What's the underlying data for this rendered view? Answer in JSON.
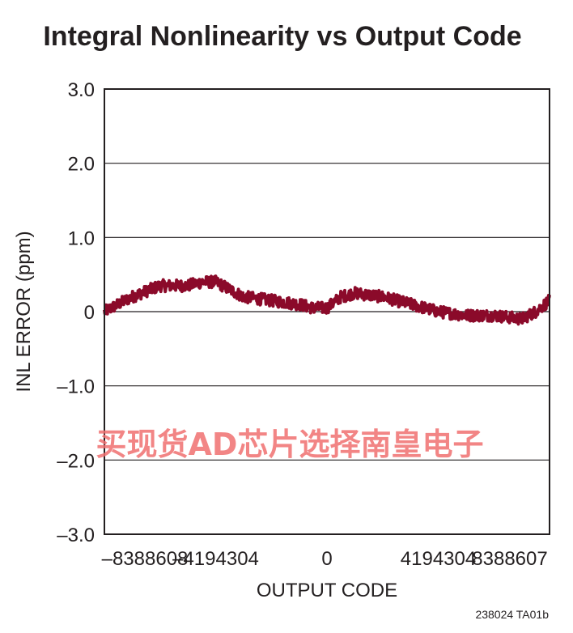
{
  "chart_data": {
    "type": "line",
    "title": "Integral Nonlinearity vs Output Code",
    "xlabel": "OUTPUT CODE",
    "ylabel": "INL ERROR (ppm)",
    "xlim": [
      -8388608,
      8388607
    ],
    "ylim": [
      -3.0,
      3.0
    ],
    "x_ticks": [
      -8388608,
      -4194304,
      0,
      4194304,
      8388607
    ],
    "x_tick_labels": [
      "–8388608",
      "–4194304",
      "0",
      "4194304",
      "8388607"
    ],
    "y_ticks": [
      3.0,
      2.0,
      1.0,
      0,
      -1.0,
      -2.0,
      -3.0
    ],
    "y_tick_labels": [
      "3.0",
      "2.0",
      "1.0",
      "0",
      "–1.0",
      "–2.0",
      "–3.0"
    ],
    "grid": "horizontal",
    "legend": "none",
    "series": [
      {
        "color": "#8b0a2a",
        "x": [
          -8388608,
          -7864320,
          -7340032,
          -6291456,
          -5242880,
          -4718592,
          -4194304,
          -3670016,
          -3145728,
          -2097152,
          -1048576,
          -524288,
          0,
          524288,
          1048576,
          2097152,
          3145728,
          4194304,
          5242880,
          6291456,
          7340032,
          7864320,
          8388607
        ],
        "y": [
          0.0,
          0.1,
          0.2,
          0.35,
          0.35,
          0.4,
          0.4,
          0.3,
          0.2,
          0.15,
          0.1,
          0.05,
          0.05,
          0.2,
          0.25,
          0.2,
          0.1,
          0.0,
          -0.05,
          -0.05,
          -0.1,
          0.0,
          0.15
        ],
        "noise": 0.08
      }
    ]
  },
  "figure_id": "238024 TA01b",
  "watermark": "买现货AD芯片选择南皇电子"
}
